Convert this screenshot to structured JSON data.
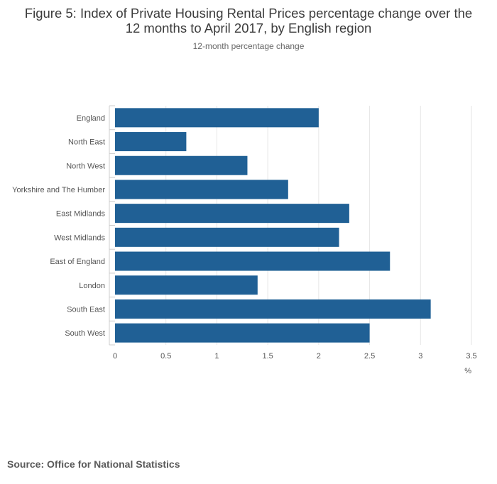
{
  "title_line1": "Figure 5: Index of Private Housing Rental Prices percentage change over the",
  "title_line2": "12 months to April 2017, by English region",
  "subtitle": "12-month percentage change",
  "source": "Source: Office for National Statistics",
  "colors": {
    "bar": "#206095",
    "grid": "#e6e6e6",
    "axis": "#cccccc",
    "text": "#555555"
  },
  "chart_data": {
    "type": "bar",
    "orientation": "horizontal",
    "categories": [
      "England",
      "North East",
      "North West",
      "Yorkshire and The Humber",
      "East Midlands",
      "West Midlands",
      "East of England",
      "London",
      "South East",
      "South West"
    ],
    "values": [
      2.0,
      0.7,
      1.3,
      1.7,
      2.3,
      2.2,
      2.7,
      1.4,
      3.1,
      2.5
    ],
    "xlim": [
      0,
      3.5
    ],
    "xticks": [
      "0",
      "0.5",
      "1",
      "1.5",
      "2",
      "2.5",
      "3",
      "3.5"
    ],
    "xlabel": "%",
    "ylabel": "",
    "grid": true,
    "legend": "none"
  }
}
